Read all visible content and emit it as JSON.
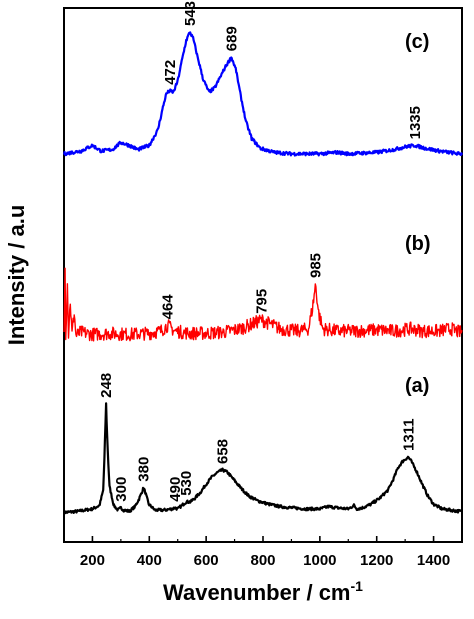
{
  "chart_data": {
    "type": "line",
    "xlabel": "Wavenumber / cm",
    "xlabel_superscript": "-1",
    "ylabel": "Intensity / a.u",
    "xlim": [
      100,
      1500
    ],
    "xticks": [
      200,
      400,
      600,
      800,
      1000,
      1200,
      1400
    ],
    "y_ticks_shown": false,
    "series": [
      {
        "name": "(a)",
        "color": "#000000",
        "label": "(a)",
        "points": [
          [
            100,
            0.03
          ],
          [
            150,
            0.04
          ],
          [
            200,
            0.06
          ],
          [
            225,
            0.09
          ],
          [
            238,
            0.22
          ],
          [
            243,
            0.55
          ],
          [
            248,
            0.95
          ],
          [
            253,
            0.6
          ],
          [
            260,
            0.25
          ],
          [
            275,
            0.09
          ],
          [
            290,
            0.05
          ],
          [
            300,
            0.07
          ],
          [
            310,
            0.05
          ],
          [
            330,
            0.04
          ],
          [
            350,
            0.08
          ],
          [
            365,
            0.15
          ],
          [
            375,
            0.21
          ],
          [
            380,
            0.24
          ],
          [
            386,
            0.2
          ],
          [
            398,
            0.1
          ],
          [
            420,
            0.05
          ],
          [
            450,
            0.05
          ],
          [
            480,
            0.06
          ],
          [
            490,
            0.07
          ],
          [
            500,
            0.06
          ],
          [
            515,
            0.09
          ],
          [
            530,
            0.12
          ],
          [
            545,
            0.12
          ],
          [
            560,
            0.15
          ],
          [
            580,
            0.2
          ],
          [
            600,
            0.27
          ],
          [
            620,
            0.33
          ],
          [
            640,
            0.37
          ],
          [
            658,
            0.39
          ],
          [
            675,
            0.37
          ],
          [
            700,
            0.3
          ],
          [
            725,
            0.23
          ],
          [
            750,
            0.17
          ],
          [
            780,
            0.13
          ],
          [
            820,
            0.1
          ],
          [
            860,
            0.08
          ],
          [
            900,
            0.07
          ],
          [
            950,
            0.06
          ],
          [
            1000,
            0.06
          ],
          [
            1030,
            0.08
          ],
          [
            1060,
            0.07
          ],
          [
            1100,
            0.06
          ],
          [
            1120,
            0.09
          ],
          [
            1130,
            0.06
          ],
          [
            1150,
            0.07
          ],
          [
            1180,
            0.1
          ],
          [
            1210,
            0.15
          ],
          [
            1240,
            0.22
          ],
          [
            1260,
            0.32
          ],
          [
            1275,
            0.41
          ],
          [
            1290,
            0.46
          ],
          [
            1305,
            0.49
          ],
          [
            1311,
            0.5
          ],
          [
            1320,
            0.47
          ],
          [
            1340,
            0.38
          ],
          [
            1360,
            0.27
          ],
          [
            1380,
            0.17
          ],
          [
            1400,
            0.1
          ],
          [
            1430,
            0.06
          ],
          [
            1460,
            0.05
          ],
          [
            1490,
            0.04
          ]
        ],
        "peaks": [
          248,
          300,
          380,
          490,
          530,
          658,
          1311
        ]
      },
      {
        "name": "(b)",
        "color": "#ff0000",
        "label": "(b)",
        "points": [
          [
            100,
            0.05
          ],
          [
            104,
            0.7
          ],
          [
            106,
            0.05
          ],
          [
            112,
            0.5
          ],
          [
            116,
            0.05
          ],
          [
            122,
            0.35
          ],
          [
            128,
            0.05
          ],
          [
            136,
            0.25
          ],
          [
            142,
            0.04
          ],
          [
            160,
            0.07
          ],
          [
            200,
            0.05
          ],
          [
            260,
            0.06
          ],
          [
            330,
            0.05
          ],
          [
            400,
            0.06
          ],
          [
            440,
            0.08
          ],
          [
            464,
            0.13
          ],
          [
            490,
            0.08
          ],
          [
            540,
            0.06
          ],
          [
            600,
            0.06
          ],
          [
            660,
            0.07
          ],
          [
            720,
            0.1
          ],
          [
            760,
            0.14
          ],
          [
            795,
            0.18
          ],
          [
            820,
            0.15
          ],
          [
            860,
            0.1
          ],
          [
            920,
            0.08
          ],
          [
            960,
            0.1
          ],
          [
            975,
            0.3
          ],
          [
            985,
            0.5
          ],
          [
            995,
            0.25
          ],
          [
            1010,
            0.1
          ],
          [
            1060,
            0.08
          ],
          [
            1120,
            0.08
          ],
          [
            1200,
            0.09
          ],
          [
            1260,
            0.08
          ],
          [
            1320,
            0.1
          ],
          [
            1360,
            0.08
          ],
          [
            1420,
            0.08
          ],
          [
            1460,
            0.1
          ],
          [
            1490,
            0.07
          ]
        ],
        "peaks": [
          464,
          795,
          985
        ]
      },
      {
        "name": "(c)",
        "color": "#0000ff",
        "label": "(c)",
        "points": [
          [
            100,
            0.03
          ],
          [
            160,
            0.05
          ],
          [
            200,
            0.09
          ],
          [
            230,
            0.05
          ],
          [
            270,
            0.06
          ],
          [
            300,
            0.11
          ],
          [
            330,
            0.09
          ],
          [
            360,
            0.06
          ],
          [
            400,
            0.09
          ],
          [
            430,
            0.2
          ],
          [
            450,
            0.38
          ],
          [
            460,
            0.46
          ],
          [
            472,
            0.48
          ],
          [
            485,
            0.47
          ],
          [
            500,
            0.55
          ],
          [
            515,
            0.7
          ],
          [
            530,
            0.84
          ],
          [
            543,
            0.9
          ],
          [
            555,
            0.85
          ],
          [
            570,
            0.72
          ],
          [
            590,
            0.56
          ],
          [
            610,
            0.47
          ],
          [
            630,
            0.5
          ],
          [
            650,
            0.58
          ],
          [
            670,
            0.66
          ],
          [
            689,
            0.72
          ],
          [
            705,
            0.63
          ],
          [
            720,
            0.46
          ],
          [
            740,
            0.26
          ],
          [
            760,
            0.14
          ],
          [
            790,
            0.07
          ],
          [
            840,
            0.04
          ],
          [
            900,
            0.03
          ],
          [
            1000,
            0.03
          ],
          [
            1060,
            0.04
          ],
          [
            1100,
            0.03
          ],
          [
            1200,
            0.04
          ],
          [
            1260,
            0.06
          ],
          [
            1300,
            0.08
          ],
          [
            1335,
            0.09
          ],
          [
            1370,
            0.07
          ],
          [
            1420,
            0.05
          ],
          [
            1490,
            0.03
          ]
        ],
        "peaks": [
          472,
          543,
          689,
          1335
        ]
      }
    ]
  }
}
